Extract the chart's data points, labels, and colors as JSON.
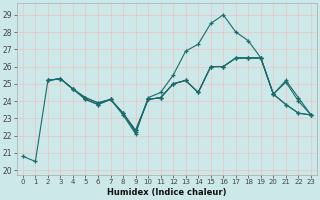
{
  "xlabel": "Humidex (Indice chaleur)",
  "bg_color": "#cce8e8",
  "grid_color": "#e8c8c8",
  "line_color": "#1a6b6b",
  "x_ticks": [
    0,
    1,
    2,
    3,
    4,
    5,
    6,
    7,
    8,
    9,
    10,
    11,
    12,
    13,
    14,
    15,
    16,
    17,
    18,
    19,
    20,
    21,
    22,
    23
  ],
  "y_ticks": [
    20,
    21,
    22,
    23,
    24,
    25,
    26,
    27,
    28,
    29
  ],
  "xlim": [
    -0.5,
    23.5
  ],
  "ylim": [
    19.7,
    29.7
  ],
  "lines": [
    {
      "x": [
        0,
        1,
        2,
        3,
        4,
        5,
        6,
        7,
        8,
        9,
        10,
        11,
        12,
        13,
        14,
        15,
        16,
        17,
        18,
        19,
        20,
        21,
        22,
        23
      ],
      "y": [
        20.8,
        20.5,
        25.2,
        25.3,
        24.7,
        24.1,
        23.8,
        24.1,
        23.2,
        22.1,
        24.2,
        24.5,
        25.5,
        26.9,
        27.3,
        28.5,
        29.0,
        28.0,
        27.5,
        26.5,
        24.4,
        25.2,
        24.2,
        23.2
      ]
    },
    {
      "x": [
        2,
        3,
        4,
        5,
        6,
        7,
        8,
        9,
        10,
        11,
        12,
        13,
        14,
        15,
        16,
        17,
        18,
        19,
        20,
        21,
        22,
        23
      ],
      "y": [
        25.2,
        25.3,
        24.7,
        24.1,
        23.8,
        24.1,
        23.3,
        22.2,
        24.1,
        24.2,
        25.0,
        25.2,
        24.5,
        26.0,
        26.0,
        26.5,
        26.5,
        26.5,
        24.4,
        25.1,
        24.0,
        23.2
      ]
    },
    {
      "x": [
        2,
        3,
        4,
        5,
        6,
        7,
        8,
        9,
        10,
        11,
        12,
        13,
        14,
        15,
        16,
        17,
        18,
        19,
        20,
        21,
        22,
        23
      ],
      "y": [
        25.2,
        25.3,
        24.7,
        24.2,
        23.9,
        24.1,
        23.3,
        22.3,
        24.1,
        24.2,
        25.0,
        25.2,
        24.5,
        26.0,
        26.0,
        26.5,
        26.5,
        26.5,
        24.4,
        23.8,
        23.3,
        23.2
      ]
    },
    {
      "x": [
        2,
        3,
        4,
        5,
        6,
        7,
        8,
        9,
        10,
        11,
        12,
        13,
        14,
        15,
        16,
        17,
        18,
        19,
        20,
        21,
        22,
        23
      ],
      "y": [
        25.2,
        25.3,
        24.7,
        24.2,
        23.9,
        24.1,
        23.3,
        22.3,
        24.1,
        24.2,
        25.0,
        25.2,
        24.5,
        26.0,
        26.0,
        26.5,
        26.5,
        26.5,
        24.4,
        23.8,
        23.3,
        23.2
      ]
    }
  ]
}
